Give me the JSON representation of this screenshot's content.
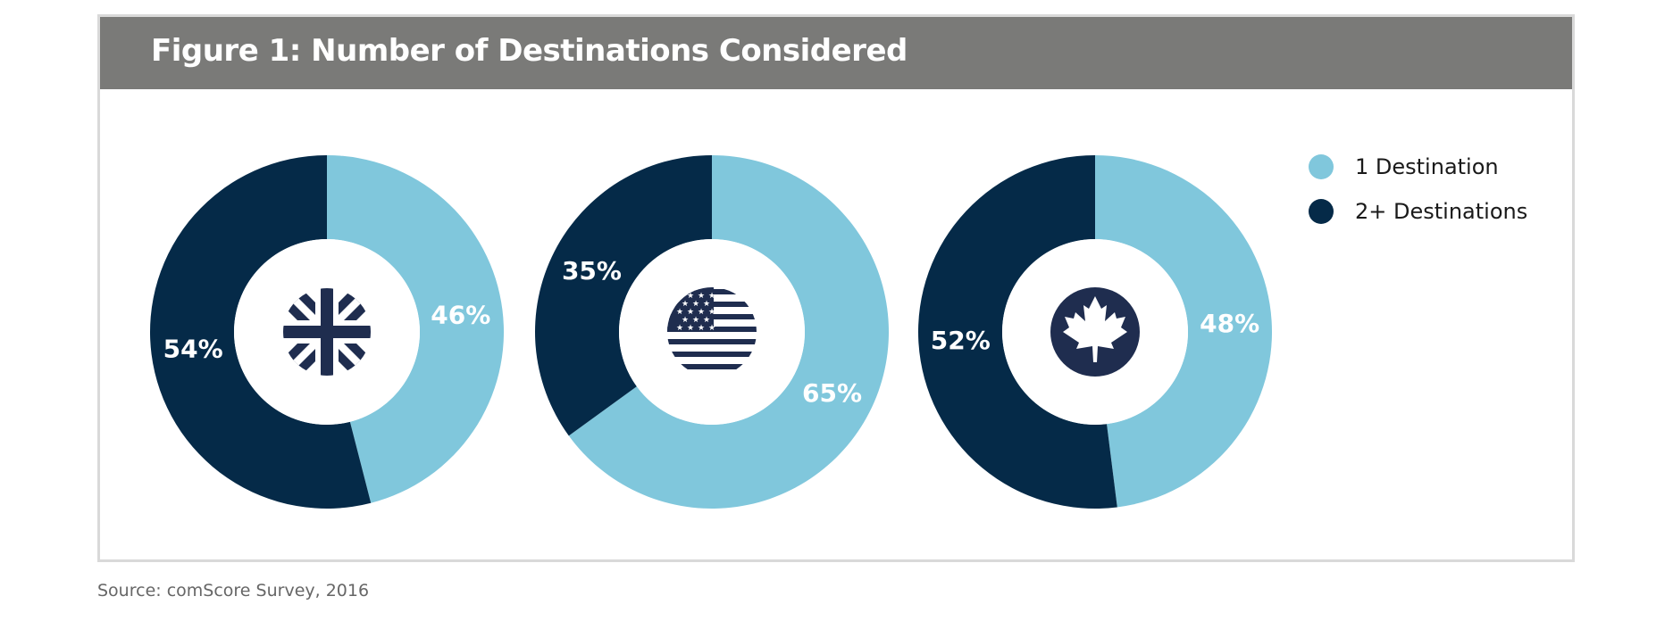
{
  "figure": {
    "title": "Figure 1: Number of Destinations Considered",
    "source": "Source: comScore Survey, 2016"
  },
  "legend": [
    {
      "label": "1 Destination",
      "color": "#80c7dc"
    },
    {
      "label": "2+ Destinations",
      "color": "#052a48"
    }
  ],
  "chart_data": [
    {
      "type": "pie",
      "subtype": "donut",
      "center_icon": "uk-flag-icon",
      "categories": [
        "1 Destination",
        "2+ Destinations"
      ],
      "values": [
        46,
        54
      ],
      "labels": [
        "46%",
        "54%"
      ],
      "colors": [
        "#80c7dc",
        "#052a48"
      ]
    },
    {
      "type": "pie",
      "subtype": "donut",
      "center_icon": "us-flag-icon",
      "categories": [
        "1 Destination",
        "2+ Destinations"
      ],
      "values": [
        65,
        35
      ],
      "labels": [
        "65%",
        "35%"
      ],
      "colors": [
        "#80c7dc",
        "#052a48"
      ]
    },
    {
      "type": "pie",
      "subtype": "donut",
      "center_icon": "canada-flag-icon",
      "categories": [
        "1 Destination",
        "2+ Destinations"
      ],
      "values": [
        48,
        52
      ],
      "labels": [
        "48%",
        "52%"
      ],
      "colors": [
        "#80c7dc",
        "#052a48"
      ]
    }
  ]
}
